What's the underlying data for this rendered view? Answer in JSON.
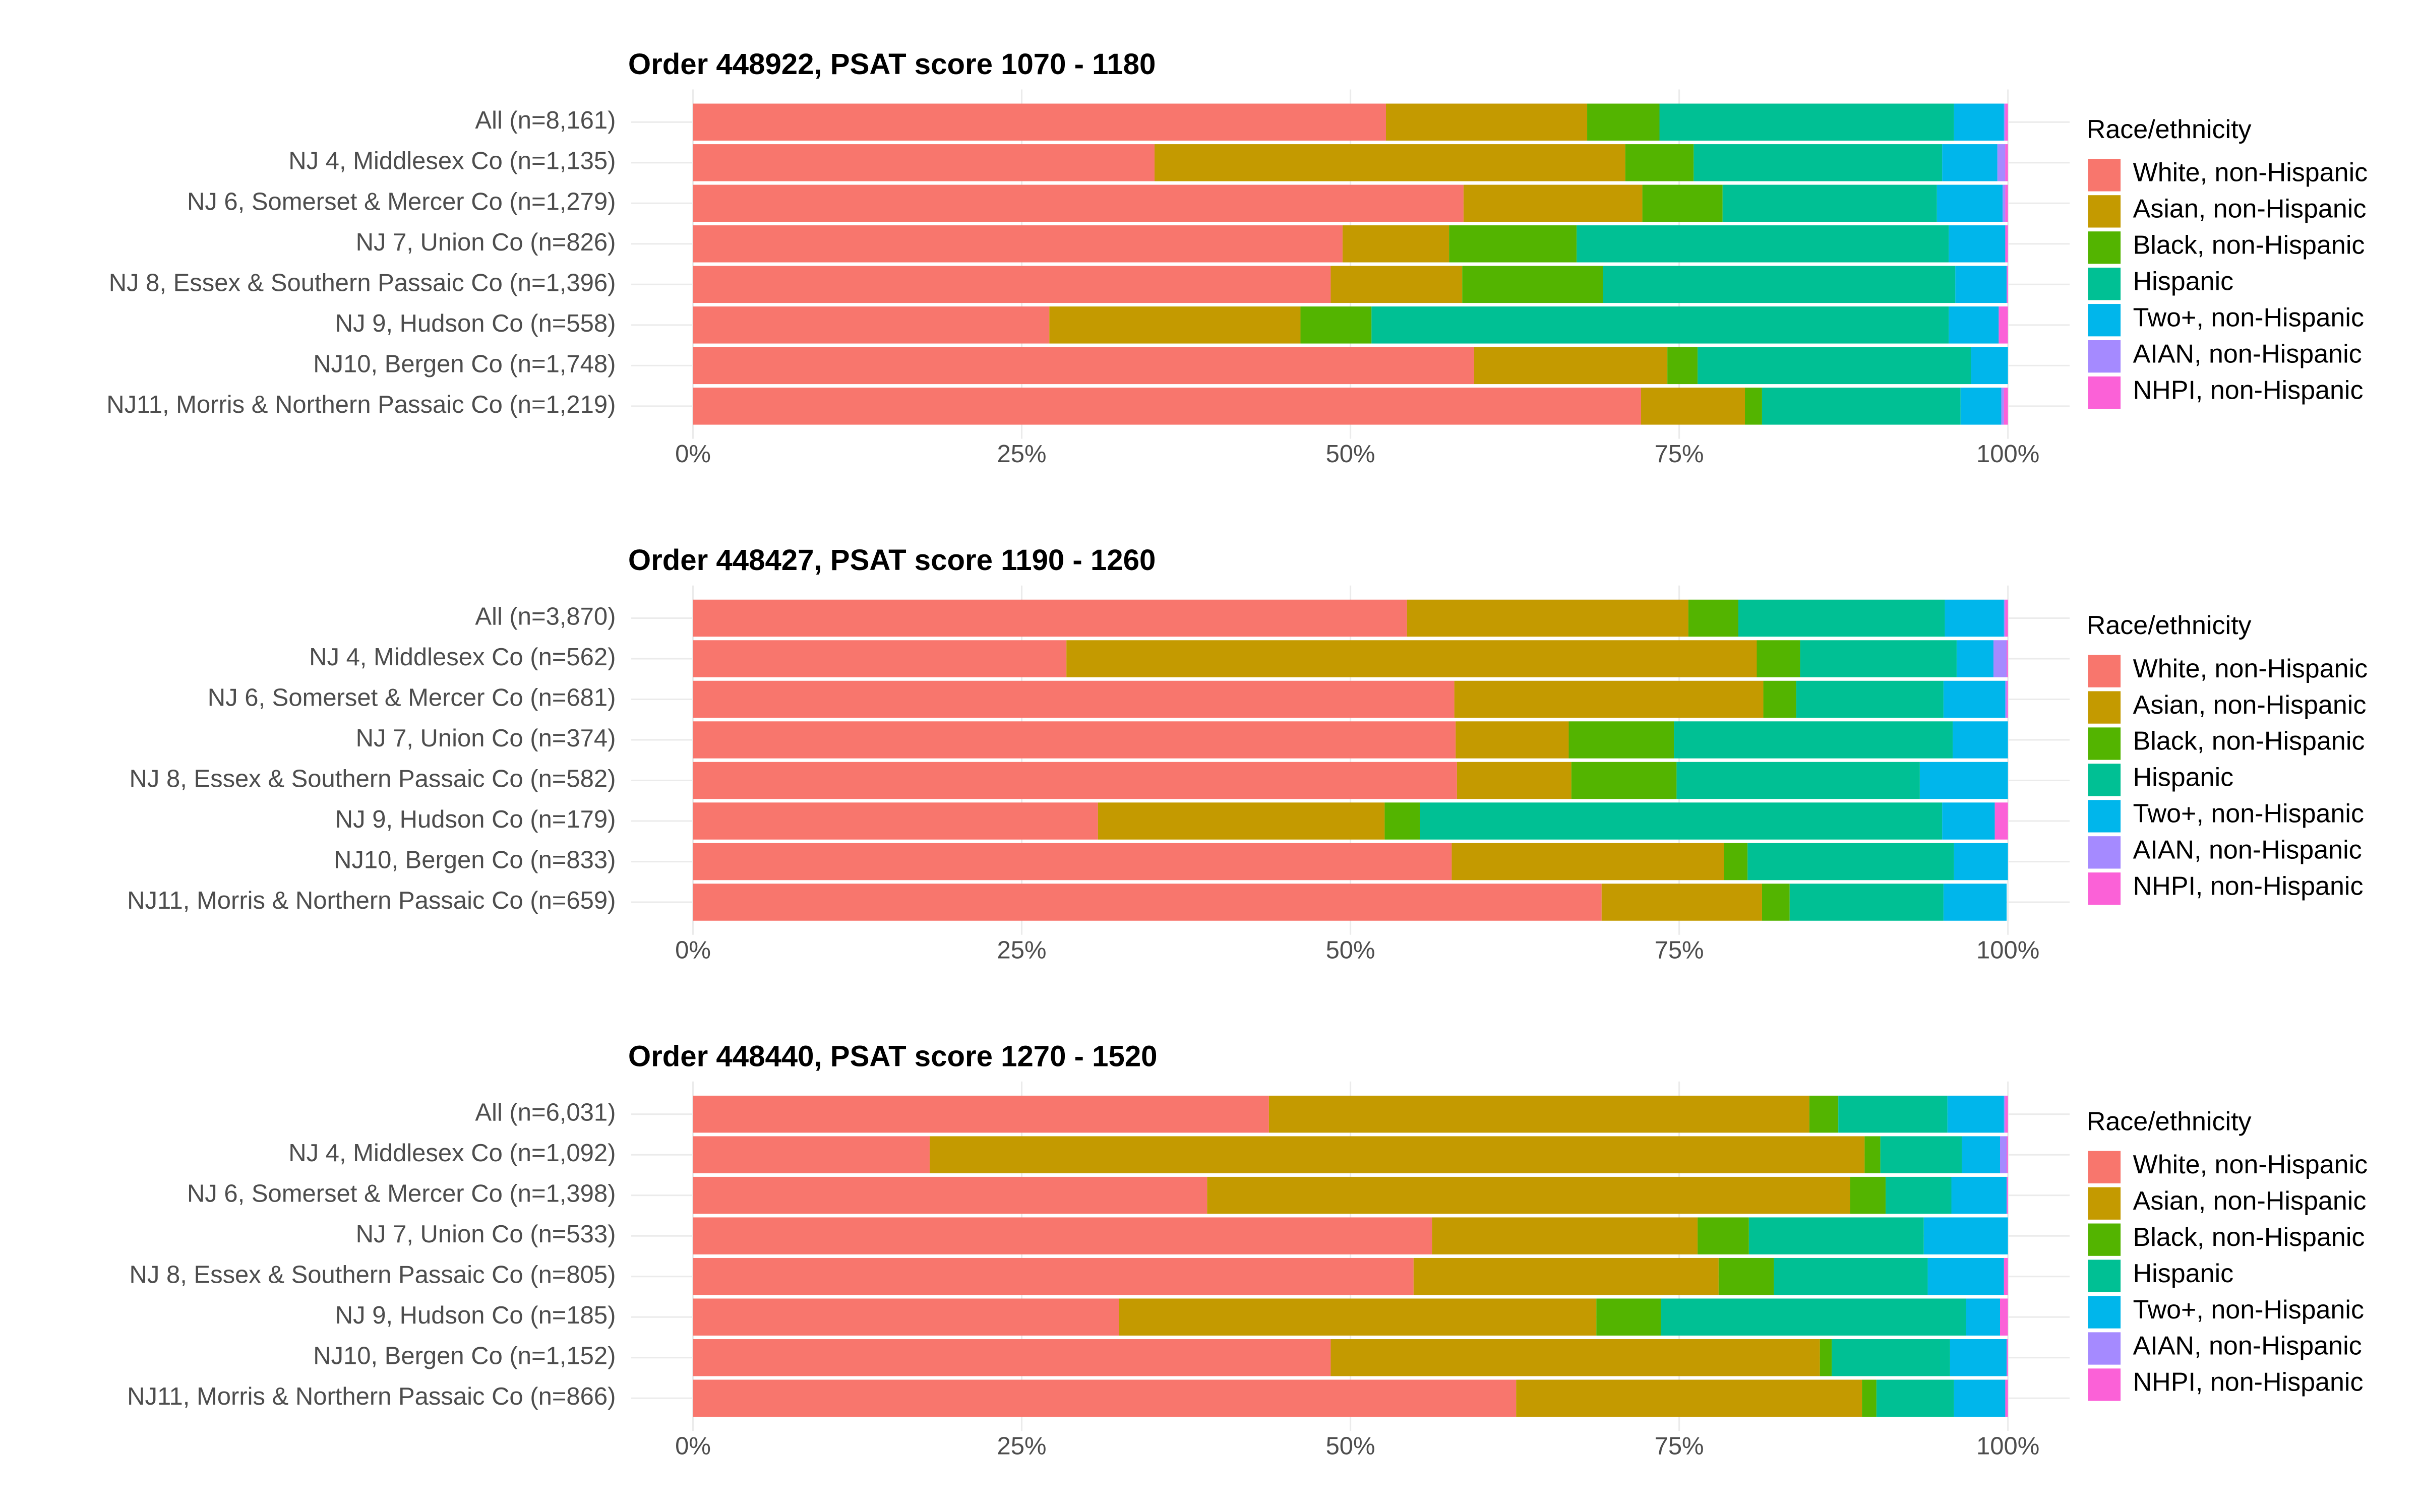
{
  "chart_data": [
    {
      "type": "bar",
      "orientation": "horizontal",
      "stacked": true,
      "title": "Order 448922, PSAT score 1070 - 1180",
      "categories": [
        "All (n=8,161)",
        "NJ 4, Middlesex Co (n=1,135)",
        "NJ 6, Somerset & Mercer Co (n=1,279)",
        "NJ 7, Union Co (n=826)",
        "NJ 8, Essex & Southern Passaic Co (n=1,396)",
        "NJ 9, Hudson Co (n=558)",
        "NJ10, Bergen Co (n=1,748)",
        "NJ11, Morris & Northern Passaic Co (n=1,219)"
      ],
      "legend_title": "Race/ethnicity",
      "series": [
        {
          "name": "White, non-Hispanic",
          "color": "#F8766D",
          "values": [
            52.7,
            35.1,
            58.6,
            49.4,
            48.5,
            27.1,
            59.4,
            72.1
          ]
        },
        {
          "name": "Asian, non-Hispanic",
          "color": "#C49A00",
          "values": [
            15.3,
            35.8,
            13.6,
            8.1,
            10.0,
            19.1,
            14.7,
            7.9
          ]
        },
        {
          "name": "Black, non-Hispanic",
          "color": "#53B400",
          "values": [
            5.5,
            5.2,
            6.1,
            9.7,
            10.7,
            5.4,
            2.3,
            1.3
          ]
        },
        {
          "name": "Hispanic",
          "color": "#00C094",
          "values": [
            22.4,
            18.9,
            16.3,
            28.3,
            26.8,
            43.9,
            20.8,
            15.1
          ]
        },
        {
          "name": "Two+, non-Hispanic",
          "color": "#00B6EB",
          "values": [
            3.8,
            4.2,
            5.0,
            4.3,
            3.9,
            3.8,
            2.8,
            3.1
          ]
        },
        {
          "name": "AIAN, non-Hispanic",
          "color": "#A58AFF",
          "values": [
            0.1,
            0.6,
            0.2,
            0,
            0,
            0,
            0,
            0.2
          ]
        },
        {
          "name": "NHPI, non-Hispanic",
          "color": "#FB61D7",
          "values": [
            0.2,
            0.2,
            0.2,
            0.2,
            0.1,
            0.7,
            0,
            0.3
          ]
        }
      ],
      "xlim": [
        0,
        100
      ],
      "xticks": [
        {
          "value": 0,
          "label": "0%"
        },
        {
          "value": 25,
          "label": "25%"
        },
        {
          "value": 50,
          "label": "50%"
        },
        {
          "value": 75,
          "label": "75%"
        },
        {
          "value": 100,
          "label": "100%"
        }
      ],
      "grid": true
    },
    {
      "type": "bar",
      "orientation": "horizontal",
      "stacked": true,
      "title": "Order 448427, PSAT score 1190 - 1260",
      "categories": [
        "All (n=3,870)",
        "NJ 4, Middlesex Co (n=562)",
        "NJ 6, Somerset & Mercer Co (n=681)",
        "NJ 7, Union Co (n=374)",
        "NJ 8, Essex & Southern Passaic Co (n=582)",
        "NJ 9, Hudson Co (n=179)",
        "NJ10, Bergen Co (n=833)",
        "NJ11, Morris & Northern Passaic Co (n=659)"
      ],
      "legend_title": "Race/ethnicity",
      "series": [
        {
          "name": "White, non-Hispanic",
          "color": "#F8766D",
          "values": [
            54.3,
            28.4,
            57.9,
            58.0,
            58.1,
            30.8,
            57.7,
            69.1
          ]
        },
        {
          "name": "Asian, non-Hispanic",
          "color": "#C49A00",
          "values": [
            21.4,
            52.5,
            23.5,
            8.6,
            8.7,
            21.8,
            20.7,
            12.2
          ]
        },
        {
          "name": "Black, non-Hispanic",
          "color": "#53B400",
          "values": [
            3.8,
            3.3,
            2.5,
            8.0,
            8.0,
            2.7,
            1.8,
            2.1
          ]
        },
        {
          "name": "Hispanic",
          "color": "#00C094",
          "values": [
            15.7,
            11.9,
            11.2,
            21.2,
            18.5,
            39.7,
            15.7,
            11.7
          ]
        },
        {
          "name": "Two+, non-Hispanic",
          "color": "#00B6EB",
          "values": [
            4.5,
            2.8,
            4.7,
            4.2,
            6.7,
            4.0,
            4.1,
            4.8
          ]
        },
        {
          "name": "AIAN, non-Hispanic",
          "color": "#A58AFF",
          "values": [
            0.1,
            1.0,
            0.1,
            0,
            0,
            0,
            0,
            0
          ]
        },
        {
          "name": "NHPI, non-Hispanic",
          "color": "#FB61D7",
          "values": [
            0.2,
            0.1,
            0.1,
            0,
            0,
            1.0,
            0,
            0
          ]
        }
      ],
      "xlim": [
        0,
        100
      ],
      "xticks": [
        {
          "value": 0,
          "label": "0%"
        },
        {
          "value": 25,
          "label": "25%"
        },
        {
          "value": 50,
          "label": "50%"
        },
        {
          "value": 75,
          "label": "75%"
        },
        {
          "value": 100,
          "label": "100%"
        }
      ],
      "grid": true
    },
    {
      "type": "bar",
      "orientation": "horizontal",
      "stacked": true,
      "title": "Order 448440, PSAT score 1270 - 1520",
      "categories": [
        "All (n=6,031)",
        "NJ 4, Middlesex Co (n=1,092)",
        "NJ 6, Somerset & Mercer Co (n=1,398)",
        "NJ 7, Union Co (n=533)",
        "NJ 8, Essex & Southern Passaic Co (n=805)",
        "NJ 9, Hudson Co (n=185)",
        "NJ10, Bergen Co (n=1,152)",
        "NJ11, Morris & Northern Passaic Co (n=866)"
      ],
      "legend_title": "Race/ethnicity",
      "series": [
        {
          "name": "White, non-Hispanic",
          "color": "#F8766D",
          "values": [
            43.8,
            18.0,
            39.1,
            56.2,
            54.8,
            32.4,
            48.5,
            62.6
          ]
        },
        {
          "name": "Asian, non-Hispanic",
          "color": "#C49A00",
          "values": [
            41.1,
            71.1,
            48.9,
            20.2,
            23.2,
            36.3,
            37.2,
            26.3
          ]
        },
        {
          "name": "Black, non-Hispanic",
          "color": "#53B400",
          "values": [
            2.2,
            1.2,
            2.7,
            3.9,
            4.2,
            4.9,
            0.9,
            1.1
          ]
        },
        {
          "name": "Hispanic",
          "color": "#00C094",
          "values": [
            8.3,
            6.2,
            5.0,
            13.3,
            11.7,
            23.2,
            9.0,
            5.9
          ]
        },
        {
          "name": "Two+, non-Hispanic",
          "color": "#00B6EB",
          "values": [
            4.3,
            2.9,
            4.2,
            6.4,
            5.8,
            2.6,
            4.3,
            3.9
          ]
        },
        {
          "name": "AIAN, non-Hispanic",
          "color": "#A58AFF",
          "values": [
            0.1,
            0.5,
            0,
            0,
            0,
            0,
            0,
            0
          ]
        },
        {
          "name": "NHPI, non-Hispanic",
          "color": "#FB61D7",
          "values": [
            0.2,
            0.1,
            0.1,
            0,
            0.3,
            0.6,
            0.1,
            0.2
          ]
        }
      ],
      "xlim": [
        0,
        100
      ],
      "xticks": [
        {
          "value": 0,
          "label": "0%"
        },
        {
          "value": 25,
          "label": "25%"
        },
        {
          "value": 50,
          "label": "50%"
        },
        {
          "value": 75,
          "label": "75%"
        },
        {
          "value": 100,
          "label": "100%"
        }
      ],
      "grid": true
    }
  ]
}
